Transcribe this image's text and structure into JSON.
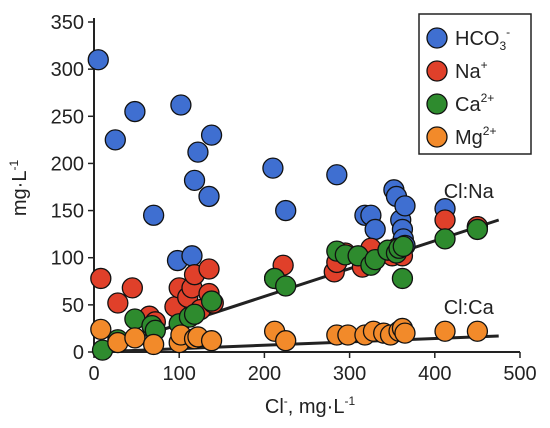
{
  "chart_data": {
    "type": "scatter",
    "title": "",
    "xlabel": {
      "base": "Cl",
      "sup": "-",
      "rest": ", mg·L",
      "sup2": "-1"
    },
    "ylabel": {
      "base": "mg·L",
      "sup": "-1"
    },
    "xlim": [
      0,
      500
    ],
    "ylim": [
      0,
      350
    ],
    "xticks": [
      0,
      100,
      200,
      300,
      400,
      500
    ],
    "yticks": [
      0,
      50,
      100,
      150,
      200,
      250,
      300,
      350
    ],
    "grid": false,
    "legend_position": "top-right",
    "series": [
      {
        "name": "HCO3-",
        "label": {
          "base": "HCO",
          "sub": "3",
          "sup": "-"
        },
        "color": "#3f6fd1",
        "points": [
          [
            5,
            310
          ],
          [
            25,
            225
          ],
          [
            48,
            255
          ],
          [
            70,
            145
          ],
          [
            98,
            97
          ],
          [
            102,
            262
          ],
          [
            115,
            102
          ],
          [
            118,
            182
          ],
          [
            122,
            212
          ],
          [
            135,
            165
          ],
          [
            138,
            230
          ],
          [
            210,
            195
          ],
          [
            225,
            150
          ],
          [
            285,
            188
          ],
          [
            318,
            145
          ],
          [
            325,
            145
          ],
          [
            330,
            130
          ],
          [
            352,
            172
          ],
          [
            355,
            165
          ],
          [
            360,
            140
          ],
          [
            362,
            130
          ],
          [
            363,
            120
          ],
          [
            365,
            113
          ],
          [
            365,
            155
          ],
          [
            412,
            152
          ],
          [
            450,
            133
          ]
        ]
      },
      {
        "name": "Na+",
        "label": {
          "base": "Na",
          "sub": "",
          "sup": "+"
        },
        "color": "#e0402a",
        "points": [
          [
            8,
            78
          ],
          [
            28,
            52
          ],
          [
            45,
            68
          ],
          [
            65,
            38
          ],
          [
            72,
            32
          ],
          [
            95,
            48
          ],
          [
            100,
            68
          ],
          [
            110,
            58
          ],
          [
            115,
            68
          ],
          [
            118,
            82
          ],
          [
            125,
            45
          ],
          [
            135,
            88
          ],
          [
            135,
            62
          ],
          [
            140,
            52
          ],
          [
            212,
            78
          ],
          [
            222,
            92
          ],
          [
            282,
            85
          ],
          [
            285,
            95
          ],
          [
            295,
            105
          ],
          [
            315,
            90
          ],
          [
            325,
            110
          ],
          [
            350,
            102
          ],
          [
            355,
            110
          ],
          [
            360,
            105
          ],
          [
            362,
            102
          ],
          [
            412,
            140
          ],
          [
            450,
            133
          ]
        ]
      },
      {
        "name": "Ca2+",
        "label": {
          "base": "Ca",
          "sub": "",
          "sup": "2+"
        },
        "color": "#2e8b2e",
        "points": [
          [
            10,
            2
          ],
          [
            28,
            13
          ],
          [
            48,
            35
          ],
          [
            68,
            28
          ],
          [
            72,
            23
          ],
          [
            100,
            30
          ],
          [
            112,
            37
          ],
          [
            118,
            40
          ],
          [
            138,
            54
          ],
          [
            212,
            78
          ],
          [
            225,
            70
          ],
          [
            285,
            107
          ],
          [
            295,
            103
          ],
          [
            310,
            102
          ],
          [
            325,
            92
          ],
          [
            330,
            98
          ],
          [
            345,
            108
          ],
          [
            355,
            105
          ],
          [
            358,
            110
          ],
          [
            362,
            78
          ],
          [
            363,
            112
          ],
          [
            412,
            120
          ],
          [
            450,
            130
          ]
        ]
      },
      {
        "name": "Mg2+",
        "label": {
          "base": "Mg",
          "sub": "",
          "sup": "2+"
        },
        "color": "#f28a2a",
        "points": [
          [
            8,
            24
          ],
          [
            28,
            10
          ],
          [
            48,
            15
          ],
          [
            70,
            8
          ],
          [
            100,
            10
          ],
          [
            102,
            18
          ],
          [
            118,
            14
          ],
          [
            122,
            16
          ],
          [
            138,
            12
          ],
          [
            212,
            22
          ],
          [
            225,
            12
          ],
          [
            285,
            18
          ],
          [
            298,
            18
          ],
          [
            318,
            18
          ],
          [
            328,
            22
          ],
          [
            340,
            20
          ],
          [
            348,
            18
          ],
          [
            358,
            22
          ],
          [
            362,
            25
          ],
          [
            365,
            20
          ],
          [
            412,
            22
          ],
          [
            450,
            22
          ]
        ]
      }
    ],
    "trendlines": [
      {
        "name": "Cl:Na",
        "label": "Cl:Na",
        "from": [
          0,
          0
        ],
        "to": [
          475,
          140
        ]
      },
      {
        "name": "Cl:Ca",
        "label": "Cl:Ca",
        "from": [
          0,
          0
        ],
        "to": [
          475,
          17
        ]
      }
    ]
  }
}
